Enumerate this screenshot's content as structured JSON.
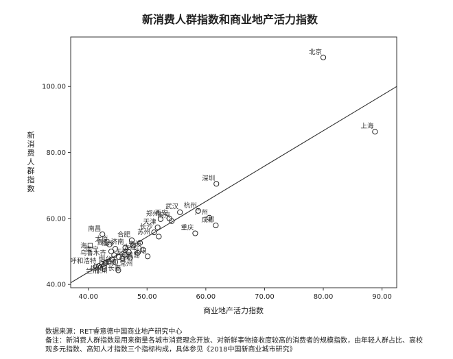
{
  "chart_data": {
    "type": "scatter",
    "title": "新消费人群指数和商业地产活力指数",
    "xlabel": "商业地产活力指数",
    "ylabel": "新消费人群指数",
    "xlim": [
      37,
      92.5
    ],
    "ylim": [
      39,
      115
    ],
    "xticks": [
      "40.00",
      "50.00",
      "60.00",
      "70.00",
      "80.00",
      "90.00"
    ],
    "yticks": [
      "40.00",
      "60.00",
      "80.00",
      "100.00"
    ],
    "xtick_values": [
      40,
      50,
      60,
      70,
      80,
      90
    ],
    "ytick_values": [
      40,
      60,
      80,
      100
    ],
    "grid": false,
    "fit_line": {
      "x": [
        37,
        92.5
      ],
      "y": [
        40.5,
        100
      ]
    },
    "labeled_points": [
      {
        "name": "北京",
        "x": 80.0,
        "y": 108.8
      },
      {
        "name": "上海",
        "x": 88.8,
        "y": 86.3
      },
      {
        "name": "深圳",
        "x": 61.8,
        "y": 70.5
      },
      {
        "name": "杭州",
        "x": 58.7,
        "y": 62.3
      },
      {
        "name": "武汉",
        "x": 55.6,
        "y": 61.9
      },
      {
        "name": "广州",
        "x": 60.6,
        "y": 60.2
      },
      {
        "name": "成都",
        "x": 61.7,
        "y": 57.9
      },
      {
        "name": "重庆",
        "x": 58.2,
        "y": 55.5
      },
      {
        "name": "西安",
        "x": 53.8,
        "y": 60.0
      },
      {
        "name": "南京",
        "x": 54.2,
        "y": 59.2
      },
      {
        "name": "郑州",
        "x": 52.3,
        "y": 59.8
      },
      {
        "name": "天津",
        "x": 51.8,
        "y": 57.3
      },
      {
        "name": "苏州",
        "x": 50.8,
        "y": 54.2
      },
      {
        "name": "长沙",
        "x": 51.2,
        "y": 55.8
      },
      {
        "name": "合肥",
        "x": 47.4,
        "y": 53.4
      },
      {
        "name": "南昌",
        "x": 42.4,
        "y": 55.2
      },
      {
        "name": "太原",
        "x": 43.6,
        "y": 52.1
      },
      {
        "name": "贵阳",
        "x": 43.9,
        "y": 51.0
      },
      {
        "name": "福州",
        "x": 44.6,
        "y": 50.8
      },
      {
        "name": "济南",
        "x": 46.3,
        "y": 51.2
      },
      {
        "name": "海口",
        "x": 41.1,
        "y": 50.0
      },
      {
        "name": "南宁",
        "x": 42.0,
        "y": 49.0
      },
      {
        "name": "宁波",
        "x": 49.3,
        "y": 50.5
      },
      {
        "name": "大连",
        "x": 48.4,
        "y": 49.6
      },
      {
        "name": "乌鲁木齐",
        "x": 43.3,
        "y": 47.8
      },
      {
        "name": "无锡",
        "x": 47.1,
        "y": 48.1
      },
      {
        "name": "沈阳",
        "x": 50.1,
        "y": 48.5
      },
      {
        "name": "呼和浩特",
        "x": 41.6,
        "y": 45.4
      },
      {
        "name": "烟台",
        "x": 44.2,
        "y": 46.0
      },
      {
        "name": "昆明",
        "x": 47.8,
        "y": 46.4
      },
      {
        "name": "青岛",
        "x": 49.0,
        "y": 47.2
      },
      {
        "name": "南通",
        "x": 45.0,
        "y": 45.0
      },
      {
        "name": "兰州",
        "x": 42.0,
        "y": 42.3
      },
      {
        "name": "常州",
        "x": 47.8,
        "y": 44.6
      },
      {
        "name": "扬州",
        "x": 42.8,
        "y": 43.1
      },
      {
        "name": "长春",
        "x": 45.8,
        "y": 43.3
      },
      {
        "name": "徐州",
        "x": 43.5,
        "y": 42.4
      }
    ],
    "points": [
      {
        "x": 80.0,
        "y": 108.8
      },
      {
        "x": 88.8,
        "y": 86.3
      },
      {
        "x": 61.8,
        "y": 70.5
      },
      {
        "x": 58.7,
        "y": 62.3
      },
      {
        "x": 55.6,
        "y": 61.9
      },
      {
        "x": 60.6,
        "y": 60.2
      },
      {
        "x": 61.7,
        "y": 57.9
      },
      {
        "x": 58.2,
        "y": 55.5
      },
      {
        "x": 53.8,
        "y": 60.0
      },
      {
        "x": 54.2,
        "y": 59.2
      },
      {
        "x": 52.3,
        "y": 59.8
      },
      {
        "x": 51.8,
        "y": 57.3
      },
      {
        "x": 51.2,
        "y": 55.8
      },
      {
        "x": 52.0,
        "y": 54.5
      },
      {
        "x": 47.4,
        "y": 53.4
      },
      {
        "x": 48.8,
        "y": 52.6
      },
      {
        "x": 42.4,
        "y": 55.2
      },
      {
        "x": 43.6,
        "y": 52.1
      },
      {
        "x": 44.6,
        "y": 50.8
      },
      {
        "x": 46.3,
        "y": 51.2
      },
      {
        "x": 47.6,
        "y": 51.8
      },
      {
        "x": 49.3,
        "y": 50.5
      },
      {
        "x": 48.4,
        "y": 49.6
      },
      {
        "x": 47.1,
        "y": 48.1
      },
      {
        "x": 50.1,
        "y": 48.5
      },
      {
        "x": 46.2,
        "y": 49.0
      },
      {
        "x": 45.2,
        "y": 48.3
      },
      {
        "x": 44.0,
        "y": 47.6
      },
      {
        "x": 43.5,
        "y": 47.0
      },
      {
        "x": 42.9,
        "y": 46.5
      },
      {
        "x": 42.3,
        "y": 46.2
      },
      {
        "x": 41.8,
        "y": 45.6
      },
      {
        "x": 41.3,
        "y": 45.4
      },
      {
        "x": 42.7,
        "y": 45.5
      },
      {
        "x": 44.6,
        "y": 46.8
      },
      {
        "x": 45.8,
        "y": 47.9
      },
      {
        "x": 44.4,
        "y": 48.9
      },
      {
        "x": 43.9,
        "y": 50.0
      },
      {
        "x": 46.9,
        "y": 49.8
      },
      {
        "x": 42.7,
        "y": 44.6
      },
      {
        "x": 45.1,
        "y": 44.3
      }
    ]
  },
  "notes": {
    "source": "数据来源：RET睿意德中国商业地产研究中心",
    "remark_line1": "备注：新消费人群指数是用来衡量各城市消费理念开放、对新鲜事物接收度较高的消费者的规模指数，由年轻人群占比、高校",
    "remark_line2": "观多元指数、高知人才指数三个指标构成，具体参见《2018中国新商业城市研究》"
  }
}
